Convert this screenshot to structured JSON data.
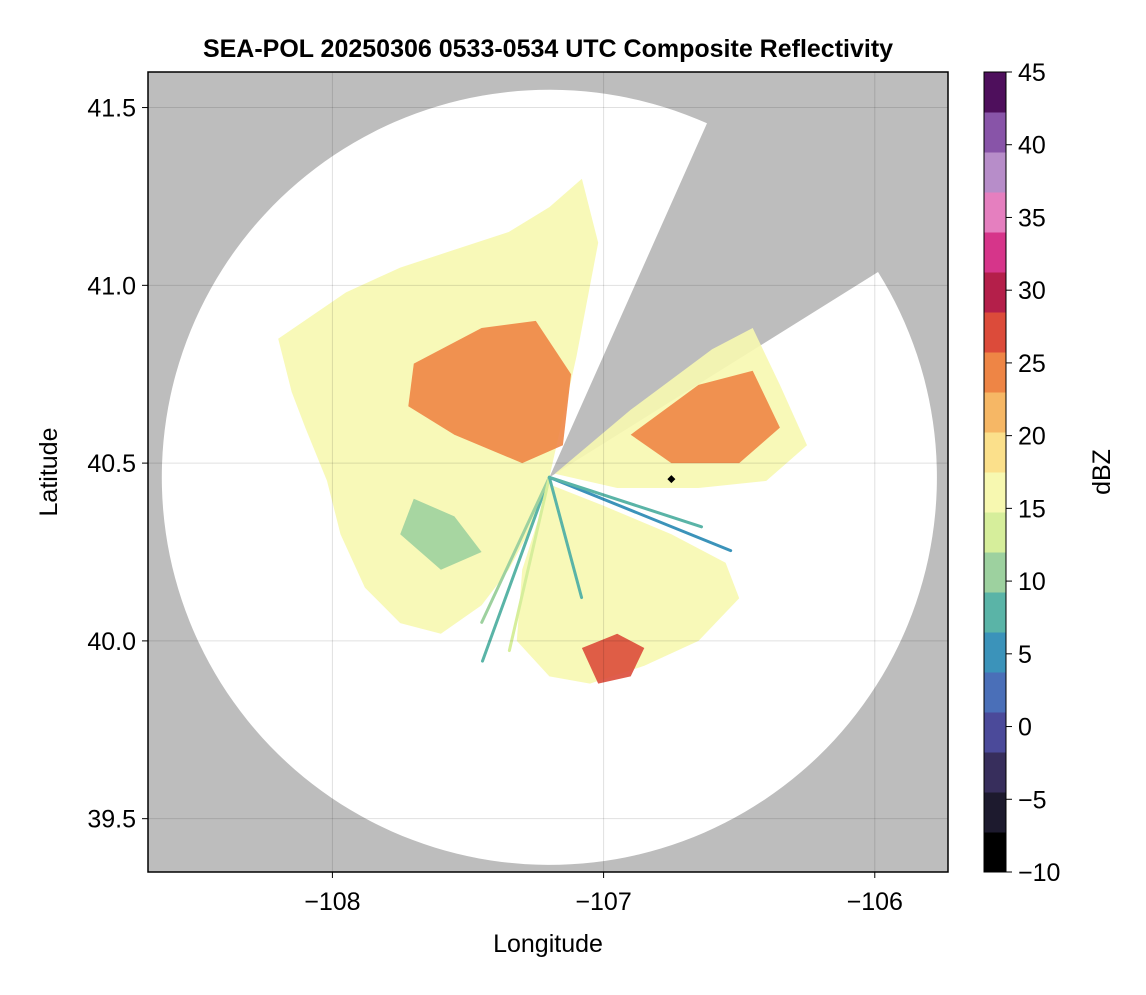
{
  "chart_data": {
    "type": "heatmap",
    "title": "SEA-POL 20250306 0533-0534 UTC Composite Reflectivity",
    "xlabel": "Longitude",
    "ylabel": "Latitude",
    "xlim": [
      -108.68,
      -105.73
    ],
    "ylim": [
      39.35,
      41.6
    ],
    "xticks": [
      -108,
      -107,
      -106
    ],
    "xtick_labels": [
      "−108",
      "−107",
      "−106"
    ],
    "yticks": [
      39.5,
      40.0,
      40.5,
      41.0,
      41.5
    ],
    "ytick_labels": [
      "39.5",
      "40.0",
      "40.5",
      "41.0",
      "41.5"
    ],
    "grid": true,
    "background_color": "#bdbdbd",
    "coverage_color": "#ffffff",
    "radar": {
      "center_lon": -107.2,
      "center_lat": 40.46,
      "max_range_deg_lat": 1.09,
      "blocked_sector_bearings_deg": [
        24,
        58
      ]
    },
    "marker": {
      "lon": -106.75,
      "lat": 40.455,
      "symbol": "diamond",
      "color": "#000000"
    },
    "colorbar": {
      "label": "dBZ",
      "min": -10,
      "max": 45,
      "ticks": [
        -10,
        -5,
        0,
        5,
        10,
        15,
        20,
        25,
        30,
        35,
        40,
        45
      ],
      "tick_labels": [
        "−10",
        "−5",
        "0",
        "5",
        "10",
        "15",
        "20",
        "25",
        "30",
        "35",
        "40",
        "45"
      ],
      "colors": [
        "#000000",
        "#1d1a2e",
        "#372e5c",
        "#4b4a9a",
        "#4a6fb8",
        "#3b93ba",
        "#5ab4a7",
        "#9dd19f",
        "#d6ee9b",
        "#f7f8b0",
        "#fbe08b",
        "#f6b765",
        "#ee8545",
        "#dc4b3a",
        "#b41f4a",
        "#d6358a",
        "#e57fbf",
        "#b78dc9",
        "#8854a8",
        "#4e0f5c"
      ]
    },
    "echo_regions": [
      {
        "name": "west-lobe",
        "points": [
          [
            -108.2,
            40.85
          ],
          [
            -107.95,
            40.98
          ],
          [
            -107.75,
            41.05
          ],
          [
            -107.55,
            41.1
          ],
          [
            -107.35,
            41.15
          ],
          [
            -107.2,
            41.22
          ],
          [
            -107.08,
            41.3
          ],
          [
            -107.02,
            41.12
          ],
          [
            -107.1,
            40.8
          ],
          [
            -107.2,
            40.46
          ],
          [
            -107.28,
            40.3
          ],
          [
            -107.35,
            40.2
          ],
          [
            -107.45,
            40.1
          ],
          [
            -107.6,
            40.02
          ],
          [
            -107.75,
            40.05
          ],
          [
            -107.88,
            40.15
          ],
          [
            -107.97,
            40.3
          ],
          [
            -108.02,
            40.45
          ],
          [
            -108.1,
            40.6
          ],
          [
            -108.15,
            40.7
          ]
        ],
        "dbz": 15
      },
      {
        "name": "east-sector",
        "points": [
          [
            -107.18,
            40.47
          ],
          [
            -106.9,
            40.65
          ],
          [
            -106.6,
            40.82
          ],
          [
            -106.45,
            40.88
          ],
          [
            -106.35,
            40.72
          ],
          [
            -106.25,
            40.55
          ],
          [
            -106.4,
            40.45
          ],
          [
            -106.65,
            40.43
          ],
          [
            -106.95,
            40.43
          ]
        ],
        "dbz": 17
      },
      {
        "name": "south-lobe",
        "points": [
          [
            -107.2,
            40.44
          ],
          [
            -107.0,
            40.38
          ],
          [
            -106.75,
            40.3
          ],
          [
            -106.55,
            40.22
          ],
          [
            -106.5,
            40.12
          ],
          [
            -106.65,
            40.0
          ],
          [
            -106.85,
            39.93
          ],
          [
            -107.05,
            39.88
          ],
          [
            -107.2,
            39.9
          ],
          [
            -107.32,
            40.0
          ],
          [
            -107.3,
            40.2
          ]
        ],
        "dbz": 15
      },
      {
        "name": "core-north",
        "points": [
          [
            -107.7,
            40.78
          ],
          [
            -107.45,
            40.88
          ],
          [
            -107.25,
            40.9
          ],
          [
            -107.12,
            40.75
          ],
          [
            -107.15,
            40.55
          ],
          [
            -107.3,
            40.5
          ],
          [
            -107.55,
            40.58
          ],
          [
            -107.72,
            40.66
          ]
        ],
        "dbz": 24
      },
      {
        "name": "core-east",
        "points": [
          [
            -106.9,
            40.58
          ],
          [
            -106.65,
            40.72
          ],
          [
            -106.45,
            40.76
          ],
          [
            -106.35,
            40.6
          ],
          [
            -106.5,
            40.5
          ],
          [
            -106.75,
            40.5
          ]
        ],
        "dbz": 23
      },
      {
        "name": "core-south",
        "points": [
          [
            -107.08,
            39.98
          ],
          [
            -106.95,
            40.02
          ],
          [
            -106.85,
            39.98
          ],
          [
            -106.9,
            39.9
          ],
          [
            -107.02,
            39.88
          ]
        ],
        "dbz": 26
      },
      {
        "name": "low-band-southwest",
        "points": [
          [
            -107.7,
            40.4
          ],
          [
            -107.55,
            40.35
          ],
          [
            -107.45,
            40.25
          ],
          [
            -107.6,
            40.2
          ],
          [
            -107.75,
            40.3
          ]
        ],
        "dbz": 10
      }
    ]
  }
}
